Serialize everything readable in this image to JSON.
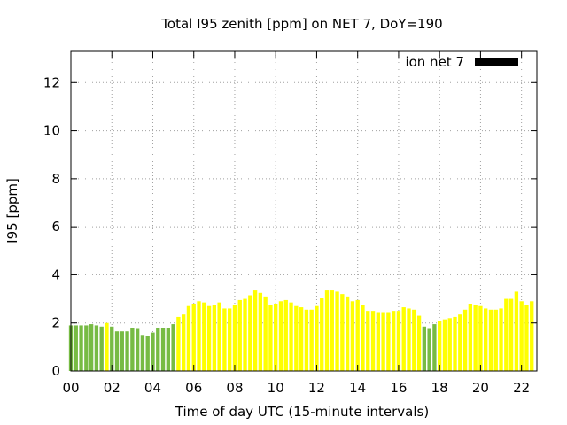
{
  "chart_data": {
    "type": "bar",
    "title": "Total I95 zenith [ppm] on NET 7, DoY=190",
    "xlabel": "Time of day UTC (15-minute intervals)",
    "ylabel": "I95 [ppm]",
    "legend": {
      "label": "ion net 7",
      "placement": "top-right",
      "swatch_color": "#000000"
    },
    "grid": true,
    "xlim": [
      0,
      22.75
    ],
    "ylim": [
      0,
      13.3
    ],
    "x_ticks": [
      "00",
      "02",
      "04",
      "06",
      "08",
      "10",
      "12",
      "14",
      "16",
      "18",
      "20",
      "22"
    ],
    "x_tick_values": [
      0,
      2,
      4,
      6,
      8,
      10,
      12,
      14,
      16,
      18,
      20,
      22
    ],
    "y_ticks": [
      "0",
      "2",
      "4",
      "6",
      "8",
      "10",
      "12"
    ],
    "y_tick_values": [
      0,
      2,
      4,
      6,
      8,
      10,
      12
    ],
    "interval_hours": 0.25,
    "colors": {
      "green": "#77bb44",
      "yellow": "#ffff00"
    },
    "values": [
      1.9,
      1.9,
      1.9,
      1.9,
      1.95,
      1.9,
      1.85,
      2.0,
      1.85,
      1.65,
      1.65,
      1.65,
      1.8,
      1.75,
      1.5,
      1.45,
      1.6,
      1.8,
      1.8,
      1.8,
      1.95,
      2.25,
      2.35,
      2.7,
      2.8,
      2.9,
      2.85,
      2.7,
      2.75,
      2.85,
      2.6,
      2.6,
      2.75,
      2.95,
      3.0,
      3.15,
      3.35,
      3.25,
      3.1,
      2.75,
      2.8,
      2.9,
      2.95,
      2.85,
      2.7,
      2.65,
      2.55,
      2.55,
      2.7,
      3.05,
      3.35,
      3.35,
      3.3,
      3.2,
      3.1,
      2.9,
      2.95,
      2.75,
      2.5,
      2.5,
      2.45,
      2.45,
      2.45,
      2.5,
      2.5,
      2.65,
      2.6,
      2.55,
      2.3,
      1.85,
      1.75,
      1.95,
      2.1,
      2.15,
      2.2,
      2.25,
      2.35,
      2.55,
      2.8,
      2.75,
      2.7,
      2.6,
      2.55,
      2.55,
      2.6,
      3.0,
      3.0,
      3.3,
      2.9,
      2.75,
      2.9
    ],
    "bar_colors": [
      "green",
      "green",
      "green",
      "green",
      "green",
      "green",
      "green",
      "yellow",
      "green",
      "green",
      "green",
      "green",
      "green",
      "green",
      "green",
      "green",
      "green",
      "green",
      "green",
      "green",
      "green",
      "yellow",
      "yellow",
      "yellow",
      "yellow",
      "yellow",
      "yellow",
      "yellow",
      "yellow",
      "yellow",
      "yellow",
      "yellow",
      "yellow",
      "yellow",
      "yellow",
      "yellow",
      "yellow",
      "yellow",
      "yellow",
      "yellow",
      "yellow",
      "yellow",
      "yellow",
      "yellow",
      "yellow",
      "yellow",
      "yellow",
      "yellow",
      "yellow",
      "yellow",
      "yellow",
      "yellow",
      "yellow",
      "yellow",
      "yellow",
      "yellow",
      "yellow",
      "yellow",
      "yellow",
      "yellow",
      "yellow",
      "yellow",
      "yellow",
      "yellow",
      "yellow",
      "yellow",
      "yellow",
      "yellow",
      "yellow",
      "green",
      "green",
      "green",
      "yellow",
      "yellow",
      "yellow",
      "yellow",
      "yellow",
      "yellow",
      "yellow",
      "yellow",
      "yellow",
      "yellow",
      "yellow",
      "yellow",
      "yellow",
      "yellow",
      "yellow",
      "yellow",
      "yellow",
      "yellow",
      "yellow"
    ]
  }
}
